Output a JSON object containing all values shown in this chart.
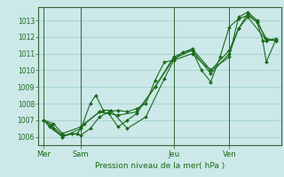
{
  "title": "",
  "xlabel": "Pression niveau de la mer( hPa )",
  "ylabel": "",
  "background_color": "#cce8e8",
  "grid_color": "#99cccc",
  "line_color": "#1a6b1a",
  "marker_color": "#1a6b1a",
  "ylim": [
    1005.5,
    1013.8
  ],
  "yticks": [
    1006,
    1007,
    1008,
    1009,
    1010,
    1011,
    1012,
    1013
  ],
  "day_labels": [
    "Mer",
    "Sam",
    "Jeu",
    "Ven"
  ],
  "day_positions": [
    0,
    2,
    7,
    10
  ],
  "xlim": [
    -0.3,
    12.8
  ],
  "lines": [
    [
      0.0,
      1007.0,
      0.5,
      1006.5,
      1.0,
      1006.0,
      1.5,
      1006.2,
      2.0,
      1006.1,
      2.5,
      1006.5,
      3.0,
      1007.2,
      3.5,
      1007.5,
      4.0,
      1007.6,
      4.5,
      1007.5,
      5.0,
      1007.7,
      5.5,
      1008.0,
      6.0,
      1009.4,
      6.5,
      1010.5,
      7.0,
      1010.6,
      7.5,
      1011.1,
      8.0,
      1011.2,
      8.5,
      1010.0,
      9.0,
      1009.3,
      9.5,
      1010.8,
      10.0,
      1012.6,
      10.5,
      1013.1,
      11.0,
      1013.3,
      11.5,
      1012.9,
      11.8,
      1011.8,
      12.0,
      1010.5,
      12.5,
      1011.8
    ],
    [
      0.0,
      1007.0,
      0.3,
      1006.6,
      1.0,
      1006.0,
      2.0,
      1006.5,
      2.5,
      1008.0,
      2.8,
      1008.5,
      3.2,
      1007.6,
      3.6,
      1007.6,
      4.5,
      1006.5,
      5.5,
      1007.2,
      6.5,
      1009.5,
      7.0,
      1010.6,
      8.0,
      1011.0,
      9.0,
      1010.0,
      10.0,
      1010.8,
      10.5,
      1013.2,
      11.0,
      1013.5,
      11.5,
      1013.0,
      12.0,
      1011.8,
      12.5,
      1011.9
    ],
    [
      0.0,
      1007.0,
      0.4,
      1006.7,
      1.0,
      1006.1,
      1.8,
      1006.2,
      2.2,
      1006.8,
      3.0,
      1007.5,
      3.5,
      1007.4,
      4.0,
      1006.6,
      4.5,
      1007.0,
      5.0,
      1007.4,
      6.0,
      1009.0,
      7.0,
      1010.7,
      8.0,
      1011.2,
      9.0,
      1009.8,
      10.0,
      1011.0,
      10.5,
      1012.5,
      11.0,
      1013.4,
      11.5,
      1012.9,
      12.0,
      1011.9,
      12.5,
      1011.8
    ],
    [
      0.0,
      1007.0,
      0.5,
      1006.8,
      1.0,
      1006.2,
      2.0,
      1006.6,
      3.0,
      1007.5,
      4.0,
      1007.3,
      5.0,
      1007.5,
      6.0,
      1009.0,
      7.0,
      1010.8,
      8.0,
      1011.3,
      9.0,
      1010.0,
      10.0,
      1011.2,
      10.5,
      1012.5,
      11.0,
      1013.2,
      12.0,
      1011.8,
      12.5,
      1011.8
    ]
  ],
  "separator_color": "#336633",
  "spine_color": "#336633",
  "tick_label_color": "#1a6b1a",
  "tick_fontsize": 5.5,
  "xlabel_fontsize": 6.5
}
